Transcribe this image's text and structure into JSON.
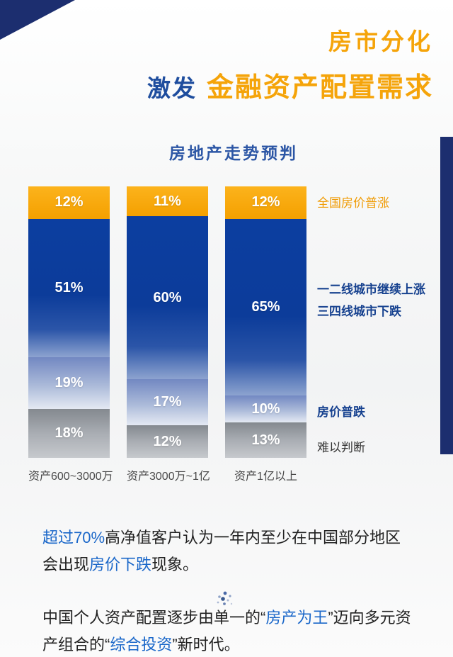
{
  "header": {
    "line1": "房市分化",
    "line2_prefix": "激发",
    "line2_main": "金融资产配置需求"
  },
  "chart": {
    "title": "房地产走势预判",
    "legend": [
      {
        "text": "全国房价普涨"
      },
      {
        "line1": "一二线城市继续上涨",
        "line2": "三四线城市下跌"
      },
      {
        "text": "房价普跌"
      },
      {
        "text": "难以判断"
      }
    ]
  },
  "chart_data": {
    "type": "bar",
    "subtype": "stacked-percentage-column",
    "title": "房地产走势预判",
    "categories": [
      "资产600~3000万",
      "资产3000万~1亿",
      "资产1亿以上"
    ],
    "series": [
      {
        "name": "全国房价普涨",
        "values": [
          12,
          11,
          12
        ],
        "color": "#F5A50A"
      },
      {
        "name": "一二线城市继续上涨 / 三四线城市下跌",
        "values": [
          51,
          60,
          65
        ],
        "color": "#0D3C9B"
      },
      {
        "name": "房价普跌",
        "values": [
          19,
          17,
          10
        ],
        "color": "#7E93C7"
      },
      {
        "name": "难以判断",
        "values": [
          18,
          12,
          13
        ],
        "color": "#9DA2A9"
      }
    ],
    "ylim": [
      0,
      100
    ],
    "value_labels": true,
    "legend_position": "right",
    "grid": false,
    "orientation": "vertical",
    "stack_order": "top-to-bottom"
  },
  "footer": {
    "p1": {
      "s1": "超过70%",
      "s2": "高净值客户认为一年内至少在中国部分地区会出现",
      "s3": "房价下跌",
      "s4": "现象。"
    },
    "p2": {
      "s1": "中国个人资产配置逐步由单一的“",
      "s2": "房产为王",
      "s3": "”迈向多元资产组合的“",
      "s4": "综合投资",
      "s5": "”新时代。"
    }
  },
  "colors": {
    "accent_orange": "#F5A40A",
    "accent_blue": "#1E4D9E",
    "deep_navy": "#1C2E6F",
    "highlight_blue": "#1A67C9"
  }
}
